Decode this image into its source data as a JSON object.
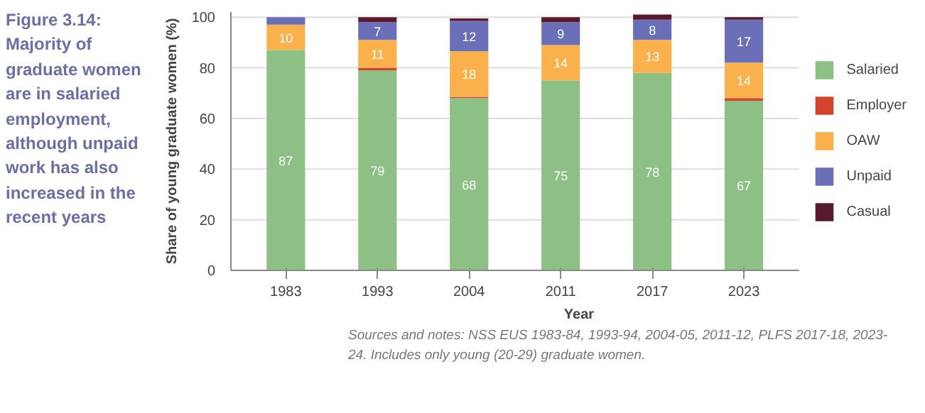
{
  "chart_data": {
    "type": "bar",
    "stacked": true,
    "title": "Figure 3.14: Majority of graduate women are in salaried employment, although unpaid work has also increased in the recent years",
    "xlabel": "Year",
    "ylabel": "Share of young graduate women (%)",
    "categories": [
      "1983",
      "1993",
      "2004",
      "2011",
      "2017",
      "2023"
    ],
    "series": [
      {
        "name": "Salaried",
        "color": "#8cc084",
        "values": [
          87,
          79,
          68,
          75,
          78,
          67
        ],
        "value_labels": [
          "87",
          "79",
          "68",
          "75",
          "78",
          "67"
        ]
      },
      {
        "name": "Employer",
        "color": "#d2452b",
        "values": [
          0,
          1,
          0.5,
          0,
          0,
          1
        ],
        "value_labels": [
          null,
          null,
          null,
          null,
          null,
          null
        ]
      },
      {
        "name": "OAW",
        "color": "#fbb14b",
        "values": [
          10,
          11,
          18,
          14,
          13,
          14
        ],
        "value_labels": [
          "10",
          "11",
          "18",
          "14",
          "13",
          "14"
        ]
      },
      {
        "name": "Unpaid",
        "color": "#6a6fb8",
        "values": [
          3,
          7,
          12,
          9,
          8,
          17
        ],
        "value_labels": [
          null,
          "7",
          "12",
          "9",
          "8",
          "17"
        ]
      },
      {
        "name": "Casual",
        "color": "#5a1a2e",
        "values": [
          0,
          2,
          1,
          2,
          2,
          1
        ],
        "value_labels": [
          null,
          null,
          null,
          null,
          null,
          null
        ]
      }
    ],
    "ylim": [
      0,
      102
    ],
    "yticks": [
      0,
      20,
      40,
      60,
      80,
      100
    ],
    "grid": "y",
    "legend": "right",
    "annotations": [
      "Sources and notes: NSS EUS 1983-84, 1993-94, 2004-05, 2011-12, PLFS 2017-18, 2023-24. Includes only young (20-29) graduate women."
    ]
  }
}
